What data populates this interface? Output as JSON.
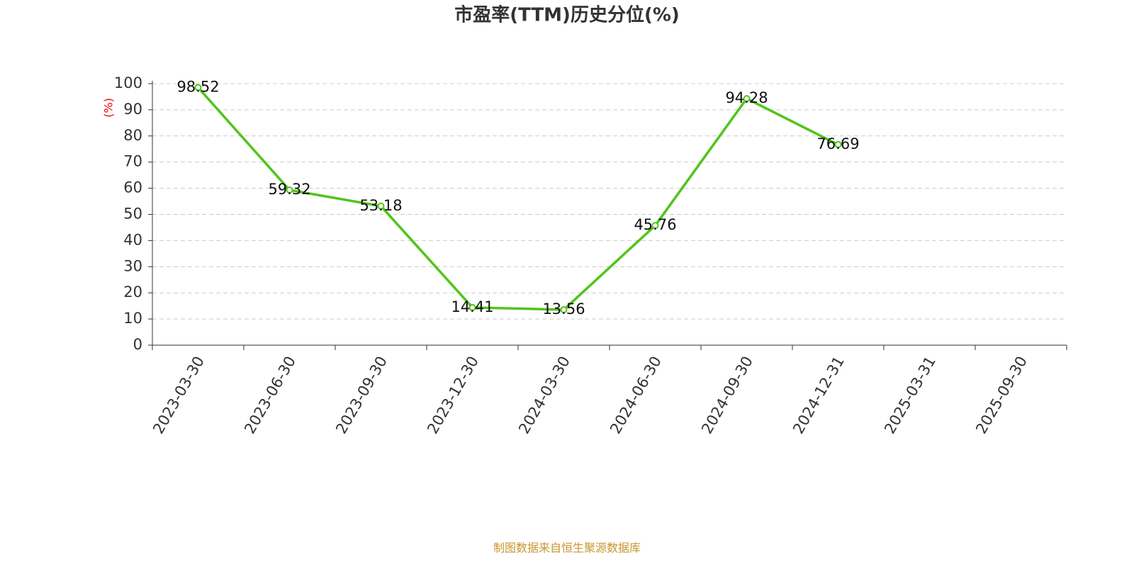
{
  "chart_data": {
    "type": "line",
    "title": "市盈率(TTM)历史分位(%)",
    "y_label": "(%)",
    "source": "制图数据来自恒生聚源数据库",
    "categories": [
      "2023-03-30",
      "2023-06-30",
      "2023-09-30",
      "2023-12-30",
      "2024-03-30",
      "2024-06-30",
      "2024-09-30",
      "2024-12-31",
      "2025-03-31",
      "2025-09-30"
    ],
    "series": [
      {
        "color": "#52c41a",
        "values": [
          98.52,
          59.32,
          53.18,
          14.41,
          13.56,
          45.76,
          94.28,
          76.69,
          null,
          null
        ]
      }
    ],
    "ylim": [
      0,
      100
    ],
    "yticks": [
      0,
      10,
      20,
      30,
      40,
      50,
      60,
      70,
      80,
      90,
      100
    ],
    "grid": true
  }
}
